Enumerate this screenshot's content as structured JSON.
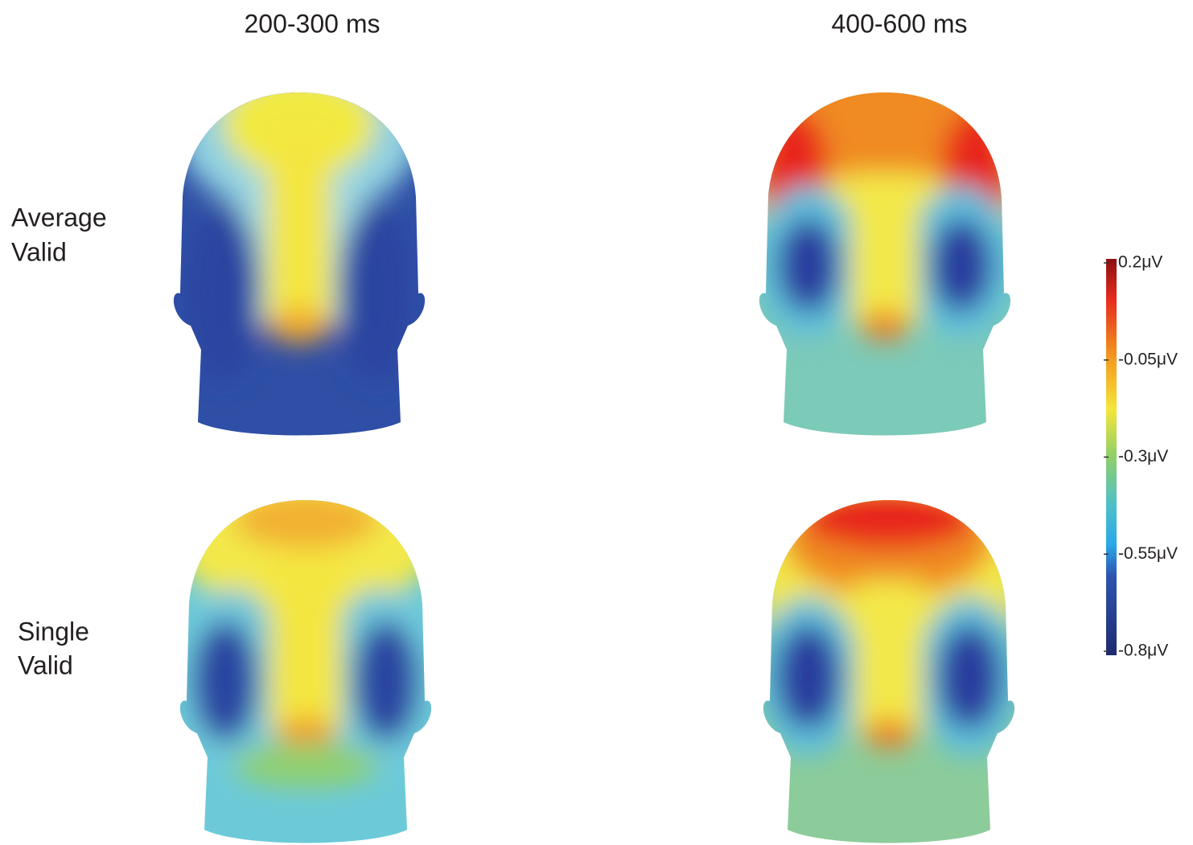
{
  "columns": [
    "200-300 ms",
    "400-600 ms"
  ],
  "rows": [
    [
      "Average",
      "Valid"
    ],
    [
      "Single",
      "Valid"
    ]
  ],
  "colorbar": {
    "lim": [
      -0.8,
      0.2
    ],
    "ticks": [
      {
        "value": 0.2,
        "label": "0.2μV"
      },
      {
        "value": -0.05,
        "label": "-0.05μV"
      },
      {
        "value": -0.3,
        "label": "-0.3μV"
      },
      {
        "value": -0.55,
        "label": "-0.55μV"
      },
      {
        "value": -0.8,
        "label": "-0.8μV"
      }
    ]
  }
}
